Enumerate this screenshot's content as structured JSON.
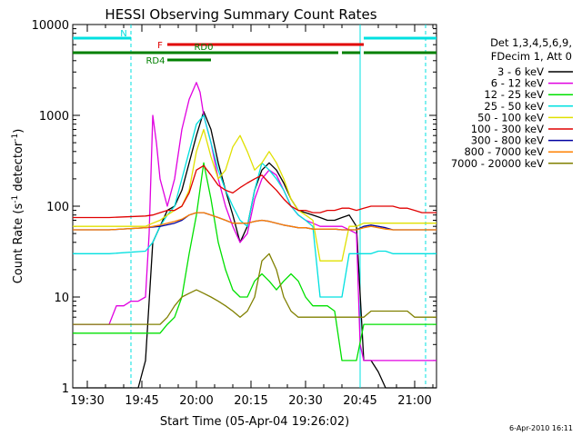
{
  "chart_data": {
    "type": "line",
    "title": "HESSI Observing Summary Count Rates",
    "xlabel": "Start Time (05-Apr-04 19:26:02)",
    "ylabel_main": "Count Rate (s",
    "ylabel_exp1": "-1",
    "ylabel_mid": " detector",
    "ylabel_exp2": "-1",
    "ylabel_end": ")",
    "x_unit": "minutes since 19:26:02",
    "xlim": [
      0,
      100
    ],
    "ylim": [
      1,
      10000
    ],
    "log_y": true,
    "x_ticks": [
      {
        "v": 4,
        "label": "19:30"
      },
      {
        "v": 19,
        "label": "19:45"
      },
      {
        "v": 34,
        "label": "20:00"
      },
      {
        "v": 49,
        "label": "20:15"
      },
      {
        "v": 64,
        "label": "20:30"
      },
      {
        "v": 79,
        "label": "20:45"
      },
      {
        "v": 94,
        "label": "21:00"
      }
    ],
    "y_ticks": [
      {
        "v": 1,
        "label": "1"
      },
      {
        "v": 10,
        "label": "10"
      },
      {
        "v": 100,
        "label": "100"
      },
      {
        "v": 1000,
        "label": "1000"
      },
      {
        "v": 10000,
        "label": "10000"
      }
    ],
    "legend_header": [
      "Det 1,3,4,5,6,9,",
      "FDecim 1, Att 0"
    ],
    "series": [
      {
        "name": "3 - 6 keV",
        "color": "#000000",
        "x": [
          0,
          14,
          18,
          20,
          22,
          24,
          26,
          28,
          30,
          32,
          34,
          36,
          38,
          40,
          42,
          44,
          46,
          48,
          50,
          52,
          54,
          56,
          58,
          60,
          62,
          64,
          66,
          68,
          70,
          72,
          74,
          76,
          78,
          80,
          82,
          84,
          86,
          88,
          90,
          92,
          94,
          96,
          98,
          100
        ],
        "y": [
          1,
          1,
          1,
          2,
          40,
          60,
          90,
          100,
          150,
          300,
          600,
          1100,
          700,
          300,
          150,
          80,
          40,
          60,
          150,
          250,
          300,
          250,
          180,
          120,
          90,
          85,
          80,
          75,
          70,
          70,
          75,
          80,
          60,
          2,
          2,
          1.5,
          1,
          1,
          1,
          1,
          1,
          1,
          1,
          1
        ]
      },
      {
        "name": "6 - 12 keV",
        "color": "#e000e0",
        "x": [
          0,
          10,
          12,
          14,
          16,
          18,
          20,
          21,
          22,
          23,
          24,
          26,
          28,
          30,
          32,
          34,
          35,
          36,
          38,
          40,
          42,
          44,
          46,
          48,
          50,
          52,
          54,
          56,
          58,
          60,
          62,
          64,
          66,
          68,
          70,
          72,
          74,
          76,
          78,
          79,
          80,
          82,
          84,
          86,
          88,
          90,
          92,
          94,
          96,
          98,
          100
        ],
        "y": [
          5,
          5,
          8,
          8,
          9,
          9,
          10,
          50,
          1000,
          500,
          200,
          100,
          200,
          700,
          1500,
          2300,
          1800,
          1000,
          500,
          200,
          100,
          60,
          40,
          50,
          120,
          200,
          250,
          220,
          150,
          100,
          80,
          70,
          65,
          60,
          60,
          60,
          60,
          55,
          50,
          3,
          2,
          2,
          2,
          2,
          2,
          2,
          2,
          2,
          2,
          2,
          2
        ]
      },
      {
        "name": "12 - 25 keV",
        "color": "#00e000",
        "x": [
          0,
          10,
          20,
          22,
          24,
          26,
          28,
          30,
          32,
          34,
          36,
          38,
          40,
          42,
          44,
          46,
          48,
          50,
          52,
          54,
          56,
          58,
          60,
          62,
          64,
          66,
          68,
          70,
          72,
          74,
          76,
          78,
          80,
          82,
          84,
          86,
          88,
          90,
          92,
          94,
          96,
          98,
          100
        ],
        "y": [
          4,
          4,
          4,
          4,
          4,
          5,
          6,
          10,
          30,
          80,
          300,
          120,
          40,
          20,
          12,
          10,
          10,
          15,
          18,
          15,
          12,
          15,
          18,
          15,
          10,
          8,
          8,
          8,
          7,
          2,
          2,
          2,
          5,
          5,
          5,
          5,
          5,
          5,
          5,
          5,
          5,
          5,
          5
        ]
      },
      {
        "name": "25 - 50 keV",
        "color": "#00e0e0",
        "x": [
          0,
          10,
          20,
          22,
          24,
          26,
          28,
          30,
          32,
          34,
          36,
          38,
          40,
          42,
          44,
          46,
          48,
          50,
          52,
          54,
          56,
          58,
          60,
          62,
          64,
          66,
          68,
          70,
          72,
          74,
          76,
          78,
          80,
          82,
          84,
          86,
          88,
          90,
          92,
          94,
          96,
          98,
          100
        ],
        "y": [
          30,
          30,
          32,
          40,
          60,
          80,
          100,
          200,
          400,
          800,
          1000,
          500,
          250,
          150,
          100,
          70,
          60,
          150,
          300,
          250,
          200,
          150,
          100,
          80,
          70,
          60,
          10,
          10,
          10,
          10,
          30,
          30,
          30,
          30,
          32,
          32,
          30,
          30,
          30,
          30,
          30,
          30,
          30
        ]
      },
      {
        "name": "50 - 100 keV",
        "color": "#e0e000",
        "x": [
          0,
          10,
          20,
          22,
          24,
          26,
          28,
          30,
          32,
          34,
          36,
          38,
          40,
          42,
          44,
          46,
          48,
          50,
          52,
          54,
          56,
          58,
          60,
          62,
          64,
          66,
          68,
          70,
          72,
          74,
          76,
          78,
          80,
          82,
          84,
          86,
          88,
          90,
          92,
          94,
          96,
          98,
          100
        ],
        "y": [
          60,
          60,
          60,
          65,
          70,
          80,
          90,
          100,
          150,
          400,
          700,
          350,
          200,
          250,
          450,
          600,
          400,
          250,
          300,
          400,
          300,
          200,
          120,
          90,
          80,
          70,
          25,
          25,
          25,
          25,
          60,
          60,
          65,
          65,
          65,
          65,
          65,
          65,
          65,
          65,
          65,
          65,
          65
        ]
      },
      {
        "name": "100 - 300 keV",
        "color": "#e00000",
        "x": [
          0,
          10,
          20,
          22,
          24,
          26,
          28,
          30,
          32,
          34,
          36,
          38,
          40,
          42,
          44,
          46,
          48,
          50,
          52,
          54,
          56,
          58,
          60,
          62,
          64,
          66,
          68,
          70,
          72,
          74,
          76,
          78,
          80,
          82,
          84,
          86,
          88,
          90,
          92,
          94,
          96,
          98,
          100
        ],
        "y": [
          75,
          75,
          78,
          80,
          85,
          90,
          90,
          100,
          140,
          250,
          280,
          220,
          170,
          150,
          140,
          160,
          180,
          200,
          220,
          180,
          150,
          120,
          100,
          90,
          90,
          85,
          85,
          90,
          90,
          95,
          95,
          90,
          95,
          100,
          100,
          100,
          100,
          95,
          95,
          90,
          85,
          85,
          85
        ]
      },
      {
        "name": "300 - 800 keV",
        "color": "#0000a0",
        "x": [
          0,
          10,
          20,
          24,
          28,
          30,
          32,
          34,
          36,
          38,
          40,
          42,
          44,
          46,
          48,
          50,
          52,
          54,
          56,
          58,
          60,
          62,
          64,
          66,
          68,
          70,
          72,
          74,
          76,
          78,
          80,
          82,
          84,
          86,
          88,
          90,
          92,
          94,
          96,
          98,
          100
        ],
        "y": [
          55,
          55,
          58,
          60,
          65,
          70,
          80,
          85,
          85,
          80,
          75,
          70,
          65,
          65,
          65,
          68,
          70,
          68,
          65,
          62,
          60,
          58,
          58,
          56,
          56,
          56,
          56,
          55,
          55,
          55,
          60,
          62,
          60,
          58,
          55,
          55,
          55,
          55,
          55,
          55,
          55
        ]
      },
      {
        "name": "800 - 7000 keV",
        "color": "#ff8000",
        "x": [
          0,
          10,
          20,
          24,
          28,
          30,
          32,
          34,
          36,
          38,
          40,
          42,
          44,
          46,
          48,
          50,
          52,
          54,
          56,
          58,
          60,
          62,
          64,
          66,
          68,
          70,
          72,
          74,
          76,
          78,
          80,
          82,
          84,
          86,
          88,
          90,
          92,
          94,
          96,
          98,
          100
        ],
        "y": [
          55,
          55,
          58,
          62,
          68,
          72,
          80,
          85,
          85,
          80,
          75,
          70,
          65,
          65,
          65,
          68,
          70,
          68,
          65,
          62,
          60,
          58,
          58,
          56,
          56,
          56,
          56,
          55,
          55,
          55,
          58,
          60,
          58,
          56,
          55,
          55,
          55,
          55,
          55,
          55,
          55
        ]
      },
      {
        "name": "7000 - 20000 keV",
        "color": "#808000",
        "x": [
          0,
          10,
          15,
          20,
          24,
          26,
          28,
          30,
          32,
          34,
          36,
          38,
          40,
          42,
          44,
          46,
          48,
          50,
          52,
          54,
          56,
          58,
          60,
          62,
          64,
          66,
          68,
          70,
          72,
          74,
          76,
          78,
          80,
          82,
          84,
          86,
          88,
          90,
          92,
          94,
          96,
          98,
          100
        ],
        "y": [
          5,
          5,
          5,
          5,
          5,
          6,
          8,
          10,
          11,
          12,
          11,
          10,
          9,
          8,
          7,
          6,
          7,
          10,
          25,
          30,
          20,
          10,
          7,
          6,
          6,
          6,
          6,
          6,
          6,
          6,
          6,
          6,
          6,
          7,
          7,
          7,
          7,
          7,
          7,
          6,
          6,
          6,
          6
        ]
      }
    ],
    "status_segments": [
      {
        "label": "N",
        "color": "#00e0e0",
        "level": "top",
        "ranges": [
          [
            0,
            16
          ],
          [
            80,
            100
          ]
        ]
      },
      {
        "label": "F",
        "color": "#e00000",
        "level": "middle",
        "ranges": [
          [
            26,
            80
          ]
        ]
      },
      {
        "label": "RD0",
        "color": "#008000",
        "level": "upper",
        "ranges": [
          [
            0,
            38
          ],
          [
            38,
            73
          ],
          [
            74,
            79
          ],
          [
            80,
            100
          ]
        ]
      },
      {
        "label": "RD4",
        "color": "#008000",
        "level": "lower",
        "ranges": [
          [
            26,
            38
          ]
        ]
      }
    ],
    "vlines": [
      {
        "x": 16,
        "style": "dashed"
      },
      {
        "x": 79,
        "style": "solid"
      },
      {
        "x": 97,
        "style": "dashed"
      }
    ],
    "grid": false
  },
  "footer": {
    "datestamp": "6-Apr-2010 16:11"
  }
}
